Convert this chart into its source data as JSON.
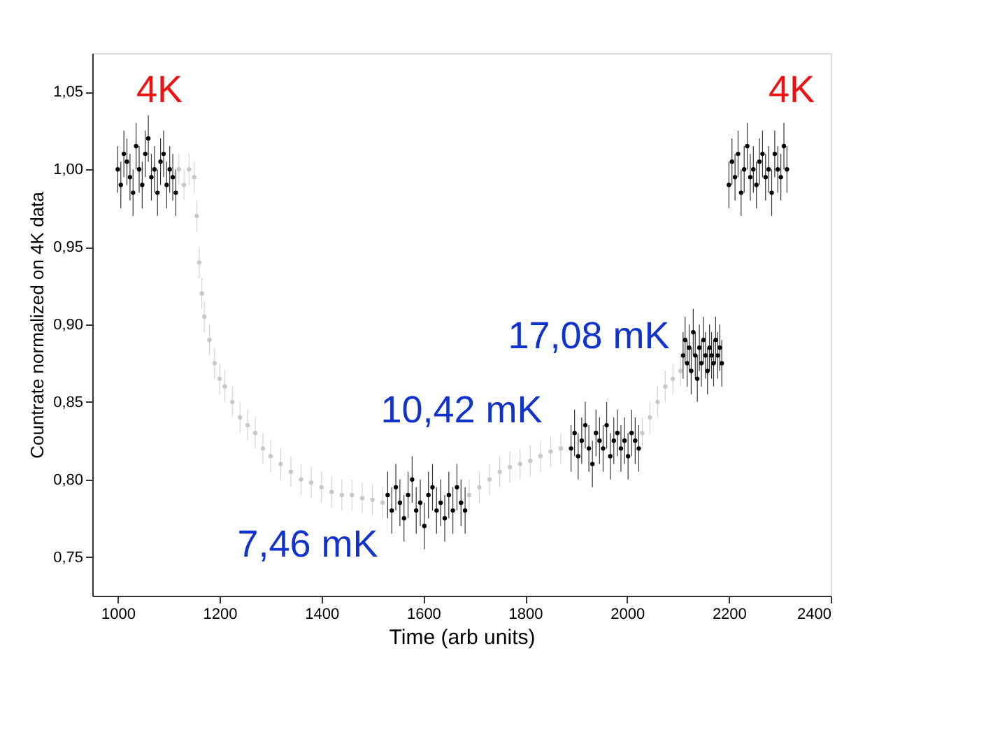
{
  "chart_data": {
    "type": "scatter",
    "xlabel": "Time (arb units)",
    "ylabel": "Countrate normalized on 4K data",
    "xlim": [
      950,
      2400
    ],
    "ylim": [
      0.725,
      1.075
    ],
    "xticks": [
      1000,
      1200,
      1400,
      1600,
      1800,
      2000,
      2200,
      2400
    ],
    "yticks": [
      {
        "value": 0.75,
        "label": "0,75"
      },
      {
        "value": 0.8,
        "label": "0,80"
      },
      {
        "value": 0.85,
        "label": "0,85"
      },
      {
        "value": 0.9,
        "label": "0,90"
      },
      {
        "value": 0.95,
        "label": "0,95"
      },
      {
        "value": 1.0,
        "label": "1,00"
      },
      {
        "value": 1.05,
        "label": "1,05"
      }
    ],
    "marker": "circle",
    "series": [
      {
        "color": "#c8c8c8",
        "x": [
          1120,
          1130,
          1140,
          1150,
          1155,
          1160,
          1165,
          1170,
          1180,
          1190,
          1200,
          1210,
          1225,
          1240,
          1255,
          1270,
          1285,
          1300,
          1320,
          1340,
          1360,
          1380,
          1400,
          1420,
          1440,
          1460,
          1480,
          1500,
          1520,
          1690,
          1710,
          1730,
          1750,
          1770,
          1790,
          1810,
          1830,
          1850,
          1870,
          2030,
          2045,
          2060,
          2075,
          2090,
          2105
        ],
        "values": [
          1.0,
          0.99,
          1.0,
          0.995,
          0.97,
          0.94,
          0.92,
          0.905,
          0.89,
          0.875,
          0.865,
          0.86,
          0.85,
          0.84,
          0.835,
          0.83,
          0.82,
          0.815,
          0.81,
          0.805,
          0.8,
          0.798,
          0.795,
          0.792,
          0.79,
          0.79,
          0.788,
          0.787,
          0.785,
          0.79,
          0.795,
          0.8,
          0.805,
          0.808,
          0.81,
          0.812,
          0.815,
          0.818,
          0.82,
          0.83,
          0.84,
          0.85,
          0.86,
          0.865,
          0.87
        ],
        "errors": [
          0.01,
          0.01,
          0.01,
          0.01,
          0.01,
          0.01,
          0.01,
          0.01,
          0.01,
          0.01,
          0.01,
          0.01,
          0.01,
          0.01,
          0.01,
          0.01,
          0.01,
          0.01,
          0.01,
          0.01,
          0.01,
          0.01,
          0.01,
          0.01,
          0.01,
          0.01,
          0.01,
          0.01,
          0.01,
          0.01,
          0.01,
          0.01,
          0.01,
          0.01,
          0.01,
          0.01,
          0.01,
          0.01,
          0.01,
          0.01,
          0.01,
          0.01,
          0.01,
          0.01,
          0.01
        ]
      },
      {
        "color": "#000000",
        "x": [
          1000,
          1006,
          1012,
          1018,
          1024,
          1030,
          1036,
          1042,
          1048,
          1054,
          1060,
          1066,
          1072,
          1078,
          1084,
          1090,
          1096,
          1102,
          1108,
          1114,
          1530,
          1538,
          1546,
          1554,
          1562,
          1570,
          1578,
          1586,
          1594,
          1602,
          1610,
          1618,
          1626,
          1634,
          1642,
          1650,
          1658,
          1666,
          1674,
          1682,
          1890,
          1897,
          1904,
          1911,
          1918,
          1925,
          1932,
          1939,
          1946,
          1953,
          1960,
          1967,
          1974,
          1981,
          1988,
          1995,
          2002,
          2009,
          2016,
          2023,
          2110,
          2114,
          2118,
          2122,
          2126,
          2130,
          2134,
          2138,
          2142,
          2146,
          2150,
          2154,
          2158,
          2162,
          2166,
          2170,
          2174,
          2178,
          2182,
          2186,
          2200,
          2206,
          2212,
          2218,
          2224,
          2230,
          2236,
          2242,
          2248,
          2254,
          2260,
          2266,
          2272,
          2278,
          2284,
          2290,
          2296,
          2302,
          2308,
          2314
        ],
        "values": [
          1.0,
          0.99,
          1.01,
          1.005,
          0.995,
          0.985,
          1.015,
          1.0,
          0.99,
          1.01,
          1.02,
          0.995,
          1.0,
          0.985,
          1.005,
          1.01,
          0.99,
          1.0,
          0.995,
          0.985,
          0.79,
          0.78,
          0.795,
          0.785,
          0.775,
          0.79,
          0.8,
          0.78,
          0.785,
          0.77,
          0.79,
          0.795,
          0.78,
          0.785,
          0.775,
          0.79,
          0.78,
          0.795,
          0.785,
          0.78,
          0.82,
          0.83,
          0.815,
          0.825,
          0.835,
          0.82,
          0.81,
          0.83,
          0.825,
          0.82,
          0.835,
          0.815,
          0.825,
          0.83,
          0.82,
          0.825,
          0.815,
          0.83,
          0.825,
          0.82,
          0.88,
          0.89,
          0.875,
          0.885,
          0.87,
          0.895,
          0.88,
          0.865,
          0.885,
          0.875,
          0.89,
          0.88,
          0.87,
          0.885,
          0.88,
          0.875,
          0.89,
          0.88,
          0.885,
          0.875,
          0.99,
          1.005,
          0.995,
          1.01,
          0.985,
          1.0,
          1.015,
          0.995,
          1.0,
          0.99,
          1.005,
          1.01,
          0.995,
          1.0,
          0.985,
          1.01,
          1.0,
          0.995,
          1.015,
          1.0
        ],
        "errors": [
          0.015,
          0.015,
          0.015,
          0.015,
          0.015,
          0.015,
          0.015,
          0.015,
          0.015,
          0.015,
          0.015,
          0.015,
          0.015,
          0.015,
          0.015,
          0.015,
          0.015,
          0.015,
          0.015,
          0.015,
          0.015,
          0.015,
          0.015,
          0.015,
          0.015,
          0.015,
          0.015,
          0.015,
          0.015,
          0.015,
          0.015,
          0.015,
          0.015,
          0.015,
          0.015,
          0.015,
          0.015,
          0.015,
          0.015,
          0.015,
          0.015,
          0.015,
          0.015,
          0.015,
          0.015,
          0.015,
          0.015,
          0.015,
          0.015,
          0.015,
          0.015,
          0.015,
          0.015,
          0.015,
          0.015,
          0.015,
          0.015,
          0.015,
          0.015,
          0.015,
          0.015,
          0.015,
          0.015,
          0.015,
          0.015,
          0.015,
          0.015,
          0.015,
          0.015,
          0.015,
          0.015,
          0.015,
          0.015,
          0.015,
          0.015,
          0.015,
          0.015,
          0.015,
          0.015,
          0.015,
          0.015,
          0.015,
          0.015,
          0.015,
          0.015,
          0.015,
          0.015,
          0.015,
          0.015,
          0.015,
          0.015,
          0.015,
          0.015,
          0.015,
          0.015,
          0.015,
          0.015,
          0.015,
          0.015,
          0.015
        ]
      }
    ],
    "annotations": [
      "4K",
      "7,46 mK",
      "10,42 mK",
      "17,08 mK",
      "4K"
    ]
  }
}
